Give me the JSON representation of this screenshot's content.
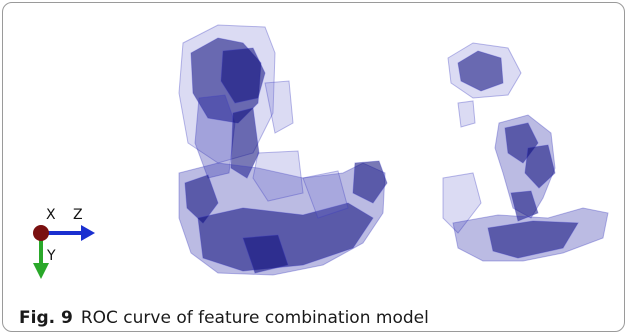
{
  "figure": {
    "axes": {
      "x": "X",
      "z": "Z",
      "y": "Y"
    },
    "label": "Fig. 9",
    "caption": "ROC curve of feature combination model"
  }
}
